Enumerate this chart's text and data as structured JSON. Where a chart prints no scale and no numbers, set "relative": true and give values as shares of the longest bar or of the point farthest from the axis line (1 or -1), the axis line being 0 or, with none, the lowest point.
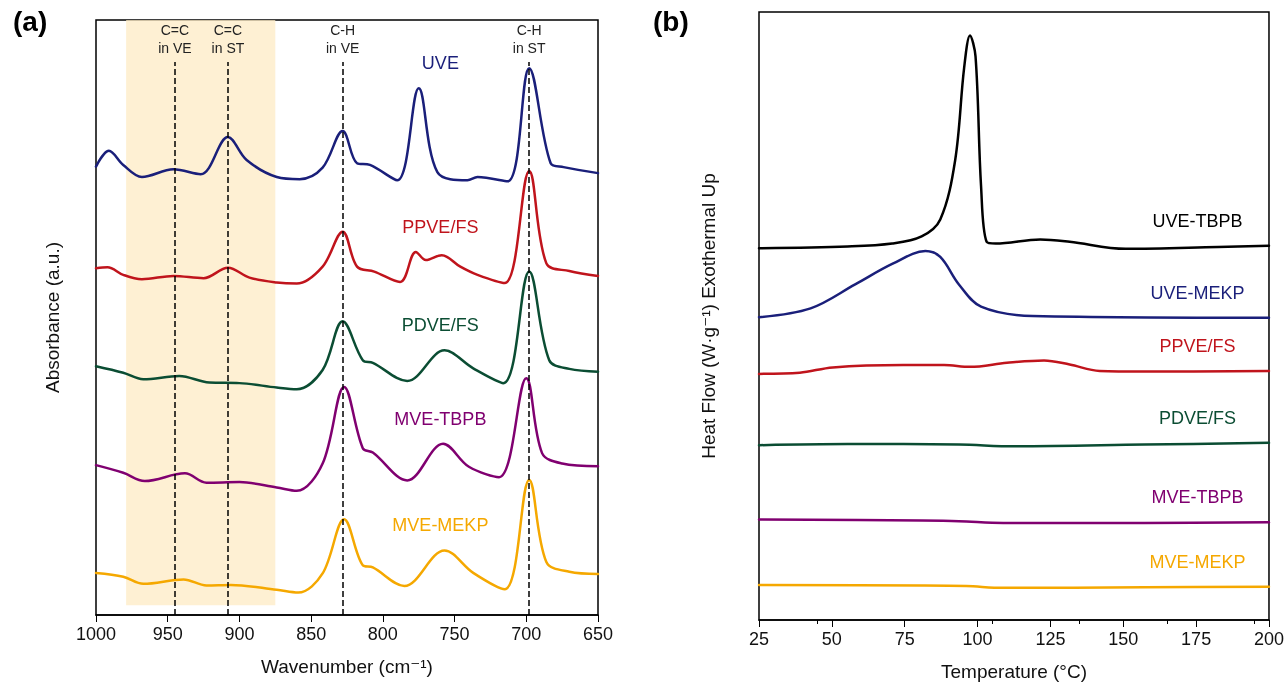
{
  "chart_data": [
    {
      "type": "line",
      "title": "(a)",
      "xlabel": "Wavenumber (cm⁻¹)",
      "ylabel": "Absorbance (a.u.)",
      "relative": true,
      "xlim": [
        1000,
        650
      ],
      "xticks": [
        1000,
        950,
        900,
        850,
        800,
        750,
        700,
        650
      ],
      "grid": false,
      "legend": false,
      "marker": "none",
      "line_style": "solid",
      "series": [
        {
          "name": "UVE",
          "color": "#1a1f7a",
          "x": [
            1000,
            991,
            981,
            968,
            946,
            927,
            908,
            895,
            874,
            858,
            842,
            828,
            818,
            809,
            790,
            775,
            762,
            741,
            734,
            713,
            698,
            683,
            674,
            650
          ],
          "values": [
            0.82,
            0.849,
            0.823,
            0.801,
            0.815,
            0.806,
            0.874,
            0.832,
            0.801,
            0.797,
            0.818,
            0.885,
            0.826,
            0.823,
            0.795,
            0.963,
            0.81,
            0.795,
            0.801,
            0.793,
            1.0,
            0.826,
            0.819,
            0.808
          ]
        },
        {
          "name": "PPVE/FS",
          "color": "#c0141c",
          "x": [
            1000,
            992,
            981,
            968,
            946,
            925,
            908,
            893,
            874,
            860,
            842,
            828,
            818,
            806,
            788,
            777,
            770,
            759,
            746,
            734,
            715,
            698,
            686,
            670,
            650
          ],
          "values": [
            0.634,
            0.636,
            0.622,
            0.614,
            0.62,
            0.616,
            0.635,
            0.617,
            0.608,
            0.606,
            0.637,
            0.701,
            0.637,
            0.628,
            0.609,
            0.664,
            0.649,
            0.658,
            0.637,
            0.622,
            0.607,
            0.812,
            0.643,
            0.629,
            0.62
          ]
        },
        {
          "name": "PDVE/FS",
          "color": "#0b4d33",
          "x": [
            1000,
            981,
            967,
            942,
            921,
            900,
            874,
            860,
            842,
            828,
            814,
            807,
            783,
            757,
            737,
            716,
            698,
            684,
            670,
            650
          ],
          "values": [
            0.455,
            0.443,
            0.431,
            0.437,
            0.425,
            0.424,
            0.416,
            0.413,
            0.448,
            0.537,
            0.466,
            0.461,
            0.428,
            0.484,
            0.451,
            0.424,
            0.628,
            0.466,
            0.45,
            0.445
          ]
        },
        {
          "name": "MVE-TBPB",
          "color": "#800070",
          "x": [
            1000,
            981,
            966,
            938,
            923,
            900,
            874,
            860,
            842,
            827,
            814,
            807,
            783,
            758,
            740,
            719,
            700,
            689,
            675,
            650
          ],
          "values": [
            0.274,
            0.26,
            0.245,
            0.259,
            0.242,
            0.243,
            0.233,
            0.227,
            0.277,
            0.417,
            0.305,
            0.297,
            0.246,
            0.313,
            0.271,
            0.252,
            0.433,
            0.296,
            0.277,
            0.272
          ]
        },
        {
          "name": "MVE-MEKP",
          "color": "#f5a800",
          "x": [
            1000,
            981,
            967,
            939,
            923,
            906,
            874,
            859,
            842,
            827,
            814,
            807,
            785,
            757,
            737,
            715,
            698,
            686,
            670,
            650
          ],
          "values": [
            0.077,
            0.07,
            0.057,
            0.065,
            0.054,
            0.055,
            0.046,
            0.041,
            0.076,
            0.175,
            0.091,
            0.087,
            0.053,
            0.118,
            0.077,
            0.047,
            0.247,
            0.097,
            0.079,
            0.075
          ]
        }
      ],
      "ref_lines": [
        {
          "axis": "x",
          "value": 945,
          "label": "C=C\nin VE",
          "line_style": "dashed",
          "color": "#000000"
        },
        {
          "axis": "x",
          "value": 908,
          "label": "C=C\nin ST",
          "line_style": "dashed",
          "color": "#000000"
        },
        {
          "axis": "x",
          "value": 828,
          "label": "C-H\nin VE",
          "line_style": "dashed",
          "color": "#000000"
        },
        {
          "axis": "x",
          "value": 698,
          "label": "C-H\nin ST",
          "line_style": "dashed",
          "color": "#000000"
        }
      ],
      "bands": [
        {
          "axis": "x",
          "from": 979,
          "to": 875,
          "color": "#fdebc4"
        }
      ]
    },
    {
      "type": "line",
      "title": "(b)",
      "xlabel": "Temperature (°C)",
      "ylabel": "Heat Flow (W·g⁻¹) Exothermal Up",
      "relative": true,
      "xlim": [
        25,
        200
      ],
      "xticks": [
        25,
        50,
        75,
        100,
        125,
        150,
        175,
        200
      ],
      "grid": false,
      "legend": false,
      "marker": "none",
      "line_style": "solid",
      "series": [
        {
          "name": "UVE-TBPB",
          "color": "#000000",
          "x": [
            25,
            55.4,
            70.7,
            80.8,
            87.2,
            92.3,
            95.4,
            97.4,
            99.3,
            101.2,
            103.1,
            106.2,
            121.5,
            131.6,
            150.8,
            182.5,
            200
          ],
          "values": [
            0.636,
            0.639,
            0.644,
            0.656,
            0.685,
            0.786,
            0.945,
            1.0,
            0.964,
            0.742,
            0.647,
            0.644,
            0.651,
            0.647,
            0.635,
            0.638,
            0.64
          ]
        },
        {
          "name": "UVE-MEKP",
          "color": "#1a1f7a",
          "x": [
            25,
            42.7,
            58,
            70.7,
            82.1,
            87.2,
            93.6,
            101.2,
            118.9,
            200
          ],
          "values": [
            0.518,
            0.533,
            0.574,
            0.609,
            0.631,
            0.621,
            0.574,
            0.536,
            0.52,
            0.517
          ]
        },
        {
          "name": "PPVE/FS",
          "color": "#c0141c",
          "x": [
            25,
            39,
            50.3,
            74.5,
            88.5,
            97.4,
            110.1,
            122.8,
            131.6,
            141.9,
            157.2,
            200
          ],
          "values": [
            0.421,
            0.423,
            0.432,
            0.436,
            0.436,
            0.433,
            0.44,
            0.444,
            0.437,
            0.426,
            0.425,
            0.426
          ]
        },
        {
          "name": "PDVE/FS",
          "color": "#0b4d33",
          "x": [
            25,
            55.4,
            93.6,
            112.6,
            157.2,
            200
          ],
          "values": [
            0.299,
            0.301,
            0.3,
            0.297,
            0.3,
            0.303
          ]
        },
        {
          "name": "MVE-TBPB",
          "color": "#800070",
          "x": [
            25,
            80.8,
            93.6,
            108.8,
            157.2,
            200
          ],
          "values": [
            0.172,
            0.17,
            0.169,
            0.166,
            0.166,
            0.167
          ]
        },
        {
          "name": "MVE-MEKP",
          "color": "#f5a800",
          "x": [
            25,
            80.8,
            96.1,
            108.8,
            157.2,
            200
          ],
          "values": [
            0.06,
            0.059,
            0.058,
            0.055,
            0.056,
            0.057
          ]
        }
      ]
    }
  ]
}
